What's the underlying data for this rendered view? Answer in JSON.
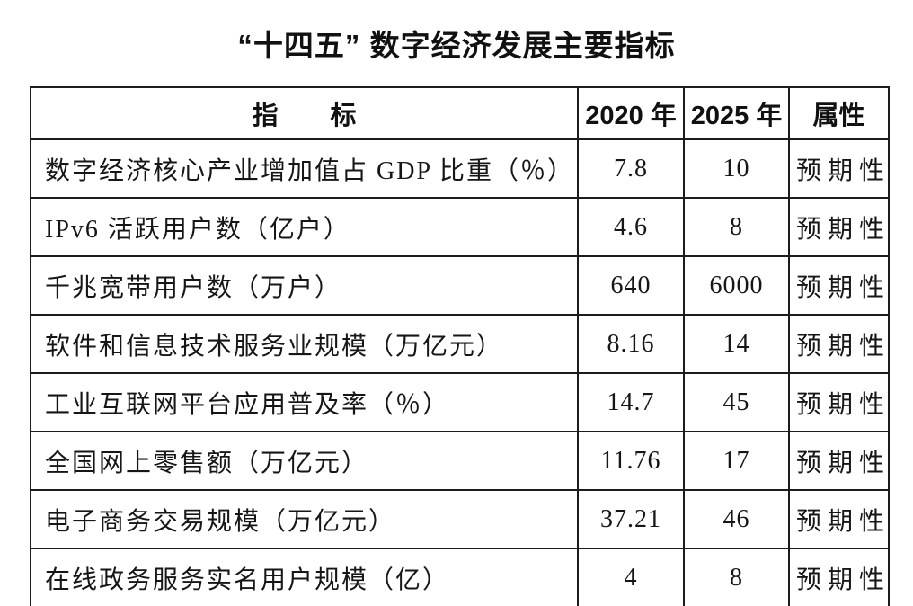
{
  "title": "“十四五” 数字经济发展主要指标",
  "table": {
    "headers": {
      "indicator": "指　　标",
      "y2020": "2020 年",
      "y2025": "2025 年",
      "attribute": "属性"
    },
    "rows": [
      {
        "indicator": "数字经济核心产业增加值占 GDP 比重（％）",
        "y2020": "7.8",
        "y2025": "10",
        "attribute": "预期性"
      },
      {
        "indicator": "IPv6 活跃用户数（亿户）",
        "y2020": "4.6",
        "y2025": "8",
        "attribute": "预期性"
      },
      {
        "indicator": "千兆宽带用户数（万户）",
        "y2020": "640",
        "y2025": "6000",
        "attribute": "预期性"
      },
      {
        "indicator": "软件和信息技术服务业规模（万亿元）",
        "y2020": "8.16",
        "y2025": "14",
        "attribute": "预期性"
      },
      {
        "indicator": "工业互联网平台应用普及率（％）",
        "y2020": "14.7",
        "y2025": "45",
        "attribute": "预期性"
      },
      {
        "indicator": "全国网上零售额（万亿元）",
        "y2020": "11.76",
        "y2025": "17",
        "attribute": "预期性"
      },
      {
        "indicator": "电子商务交易规模（万亿元）",
        "y2020": "37.21",
        "y2025": "46",
        "attribute": "预期性"
      },
      {
        "indicator": "在线政务服务实名用户规模（亿）",
        "y2020": "4",
        "y2025": "8",
        "attribute": "预期性"
      }
    ]
  }
}
